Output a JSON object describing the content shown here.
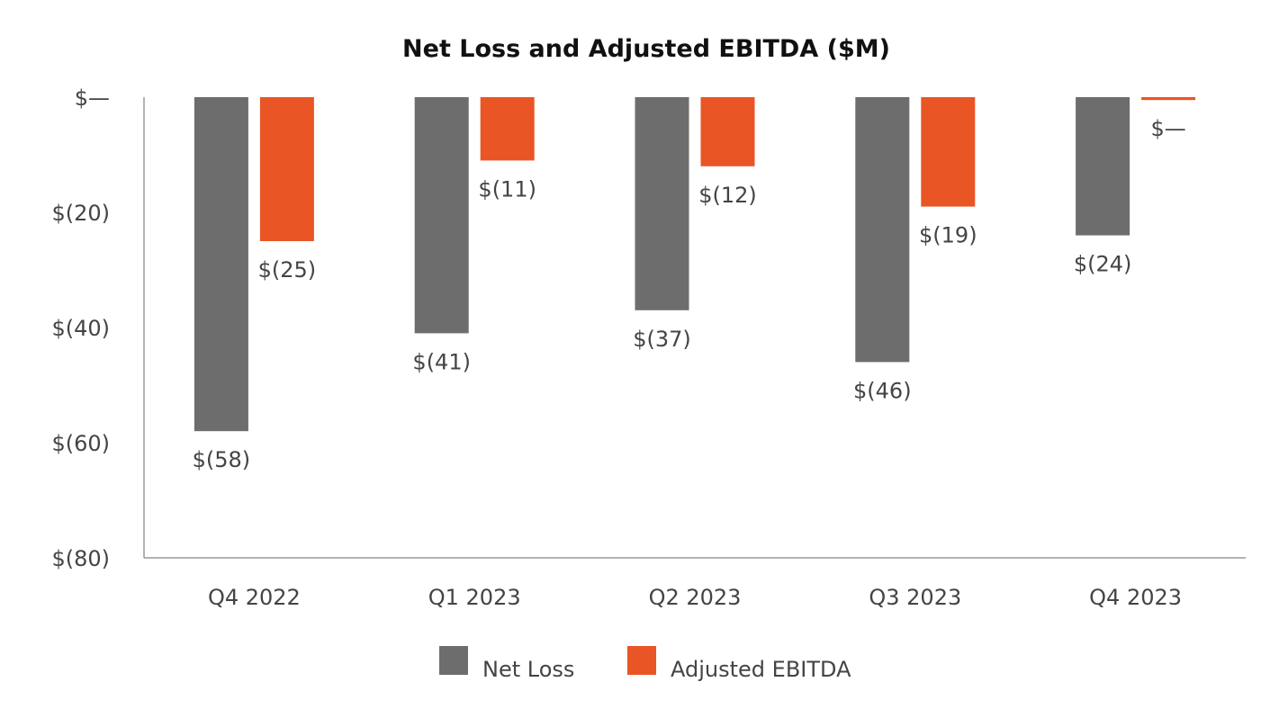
{
  "chart_data": {
    "type": "bar",
    "title": "Net Loss and Adjusted EBITDA ($M)",
    "xlabel": "",
    "ylabel": "",
    "categories": [
      "Q4 2022",
      "Q1 2023",
      "Q2 2023",
      "Q3 2023",
      "Q4 2023"
    ],
    "series": [
      {
        "name": "Net Loss",
        "color": "#6d6d6d",
        "values": [
          -58,
          -41,
          -37,
          -46,
          -24
        ],
        "labels": [
          "$(58)",
          "$(41)",
          "$(37)",
          "$(46)",
          "$(24)"
        ]
      },
      {
        "name": "Adjusted EBITDA",
        "color": "#e95525",
        "values": [
          -25,
          -11,
          -12,
          -19,
          -0.5
        ],
        "labels": [
          "$(25)",
          "$(11)",
          "$(12)",
          "$(19)",
          "$—"
        ]
      }
    ],
    "ylim": [
      -80,
      0
    ],
    "yticks": [
      0,
      -20,
      -40,
      -60,
      -80
    ],
    "ytick_labels": [
      "$—",
      "$(20)",
      "$(40)",
      "$(60)",
      "$(80)"
    ],
    "grid": false,
    "legend_position": "bottom"
  }
}
